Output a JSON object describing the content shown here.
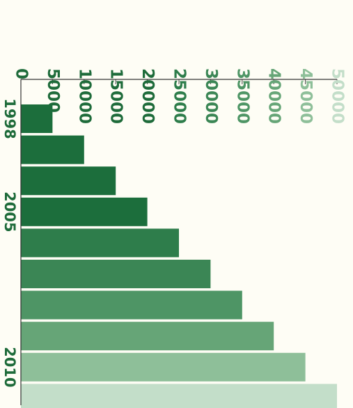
{
  "chart_data": {
    "type": "bar",
    "orientation": "horizontal",
    "value_axis": {
      "min": 0,
      "max": 50000,
      "ticks": [
        0,
        5000,
        10000,
        15000,
        20000,
        25000,
        30000,
        35000,
        40000,
        45000,
        50000
      ],
      "tick_labels": [
        "0",
        "5000",
        "10000",
        "15000",
        "20000",
        "25000",
        "30000",
        "35000",
        "40000",
        "45000",
        "50000"
      ],
      "label_orientation": "rotated"
    },
    "category_labels": [
      {
        "bar_index": 0,
        "text": "1998"
      },
      {
        "bar_index": 3,
        "text": "2005"
      },
      {
        "bar_index": 8,
        "text": "2010"
      }
    ],
    "values": [
      5000,
      10000,
      15000,
      20000,
      25000,
      30000,
      35000,
      40000,
      45000,
      50000
    ],
    "bar_colors": [
      "#1c6e3c",
      "#1c6e3c",
      "#1c6e3c",
      "#1c6e3c",
      "#2e7d4b",
      "#3b8655",
      "#4e9565",
      "#66a577",
      "#8ebf99",
      "#c3dec9"
    ],
    "tick_label_colors": [
      "#1e6b3a",
      "#1e6b3a",
      "#1e6b3a",
      "#1e6b3a",
      "#1e6b3a",
      "#2e7d4b",
      "#3b8655",
      "#4e9565",
      "#66a577",
      "#8ebf99",
      "#c3dec9"
    ],
    "grid": false,
    "legend": "none"
  }
}
